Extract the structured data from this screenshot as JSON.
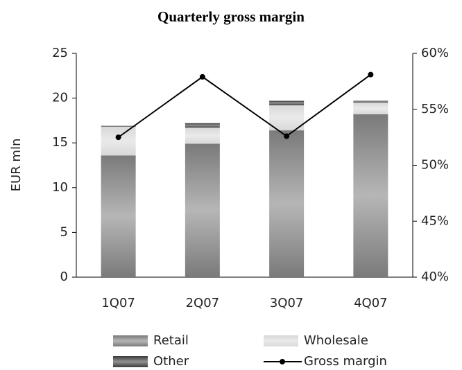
{
  "chart_data": {
    "type": "bar",
    "title": "Quarterly gross margin",
    "ylabel": "EUR mln",
    "categories": [
      "1Q07",
      "2Q07",
      "3Q07",
      "4Q07"
    ],
    "stacked": true,
    "series": [
      {
        "name": "Retail",
        "color": "#7a7a7a",
        "values": [
          13.6,
          14.9,
          16.4,
          18.2
        ]
      },
      {
        "name": "Wholesale",
        "color": "#d8d8d8",
        "values": [
          3.2,
          1.8,
          2.8,
          1.3
        ]
      },
      {
        "name": "Other",
        "color": "#3a3a3a",
        "values": [
          0.1,
          0.5,
          0.5,
          0.2
        ]
      },
      {
        "name": "Gross margin",
        "type": "line",
        "axis": "y2",
        "color": "#000000",
        "values": [
          52.5,
          57.9,
          52.6,
          58.1
        ]
      }
    ],
    "ylim": [
      0,
      25
    ],
    "yticks": [
      0,
      5,
      10,
      15,
      20,
      25
    ],
    "y2lim": [
      40,
      60
    ],
    "y2ticks": [
      {
        "value": 40,
        "label": "40%"
      },
      {
        "value": 45,
        "label": "45%"
      },
      {
        "value": 50,
        "label": "50%"
      },
      {
        "value": 55,
        "label": "55%"
      },
      {
        "value": 60,
        "label": "60%"
      }
    ]
  }
}
